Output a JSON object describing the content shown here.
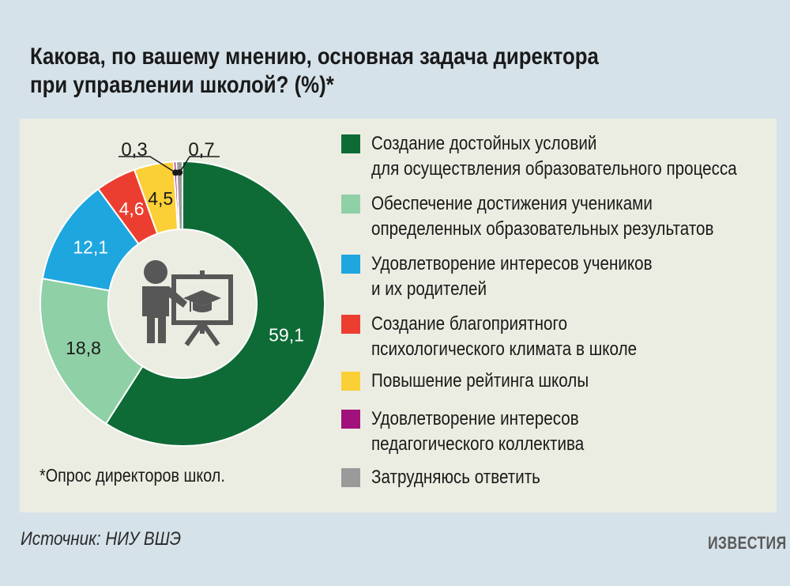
{
  "title_lines": [
    "Какова, по вашему мнению, основная задача директора",
    "при управлении школой? (%)*"
  ],
  "footnote": "*Опрос директоров школ.",
  "source": "Источник: НИУ ВШЭ",
  "logo": "ИЗВЕСТИЯ",
  "icon": "teacher-presentation-board-graduation-cap-icon",
  "chart_data": {
    "type": "pie",
    "title": "Какова, по вашему мнению, основная задача директора при управлении школой? (%)*",
    "categories": [
      "Создание достойных условий для осуществления образовательного процесса",
      "Обеспечение достижения учениками определенных образовательных результатов",
      "Удовлетворение интересов учеников и их родителей",
      "Создание благоприятного психологического климата в школе",
      "Повышение рейтинга школы",
      "Удовлетворение интересов педагогического коллектива",
      "Затрудняюсь ответить"
    ],
    "values": [
      59.1,
      18.8,
      12.1,
      4.6,
      4.5,
      0.3,
      0.7
    ],
    "value_labels": [
      "59,1",
      "18,8",
      "12,1",
      "4,6",
      "4,5",
      "0,3",
      "0,7"
    ],
    "legend_lines": [
      [
        "Создание достойных условий",
        "для осуществления образовательного процесса"
      ],
      [
        "Обеспечение достижения учениками",
        "определенных образовательных результатов"
      ],
      [
        "Удовлетворение интересов учеников",
        "и их родителей"
      ],
      [
        "Создание благоприятного",
        "психологического климата в школе"
      ],
      [
        "Повышение рейтинга школы"
      ],
      [
        "Удовлетворение интересов",
        "педагогического коллектива"
      ],
      [
        "Затрудняюсь ответить"
      ]
    ],
    "colors": [
      "#0e6b36",
      "#8fd0a6",
      "#1ea6df",
      "#ec3e30",
      "#fbcf36",
      "#a1117c",
      "#9a9a9a"
    ],
    "legend_placement": "right",
    "donut": true
  }
}
